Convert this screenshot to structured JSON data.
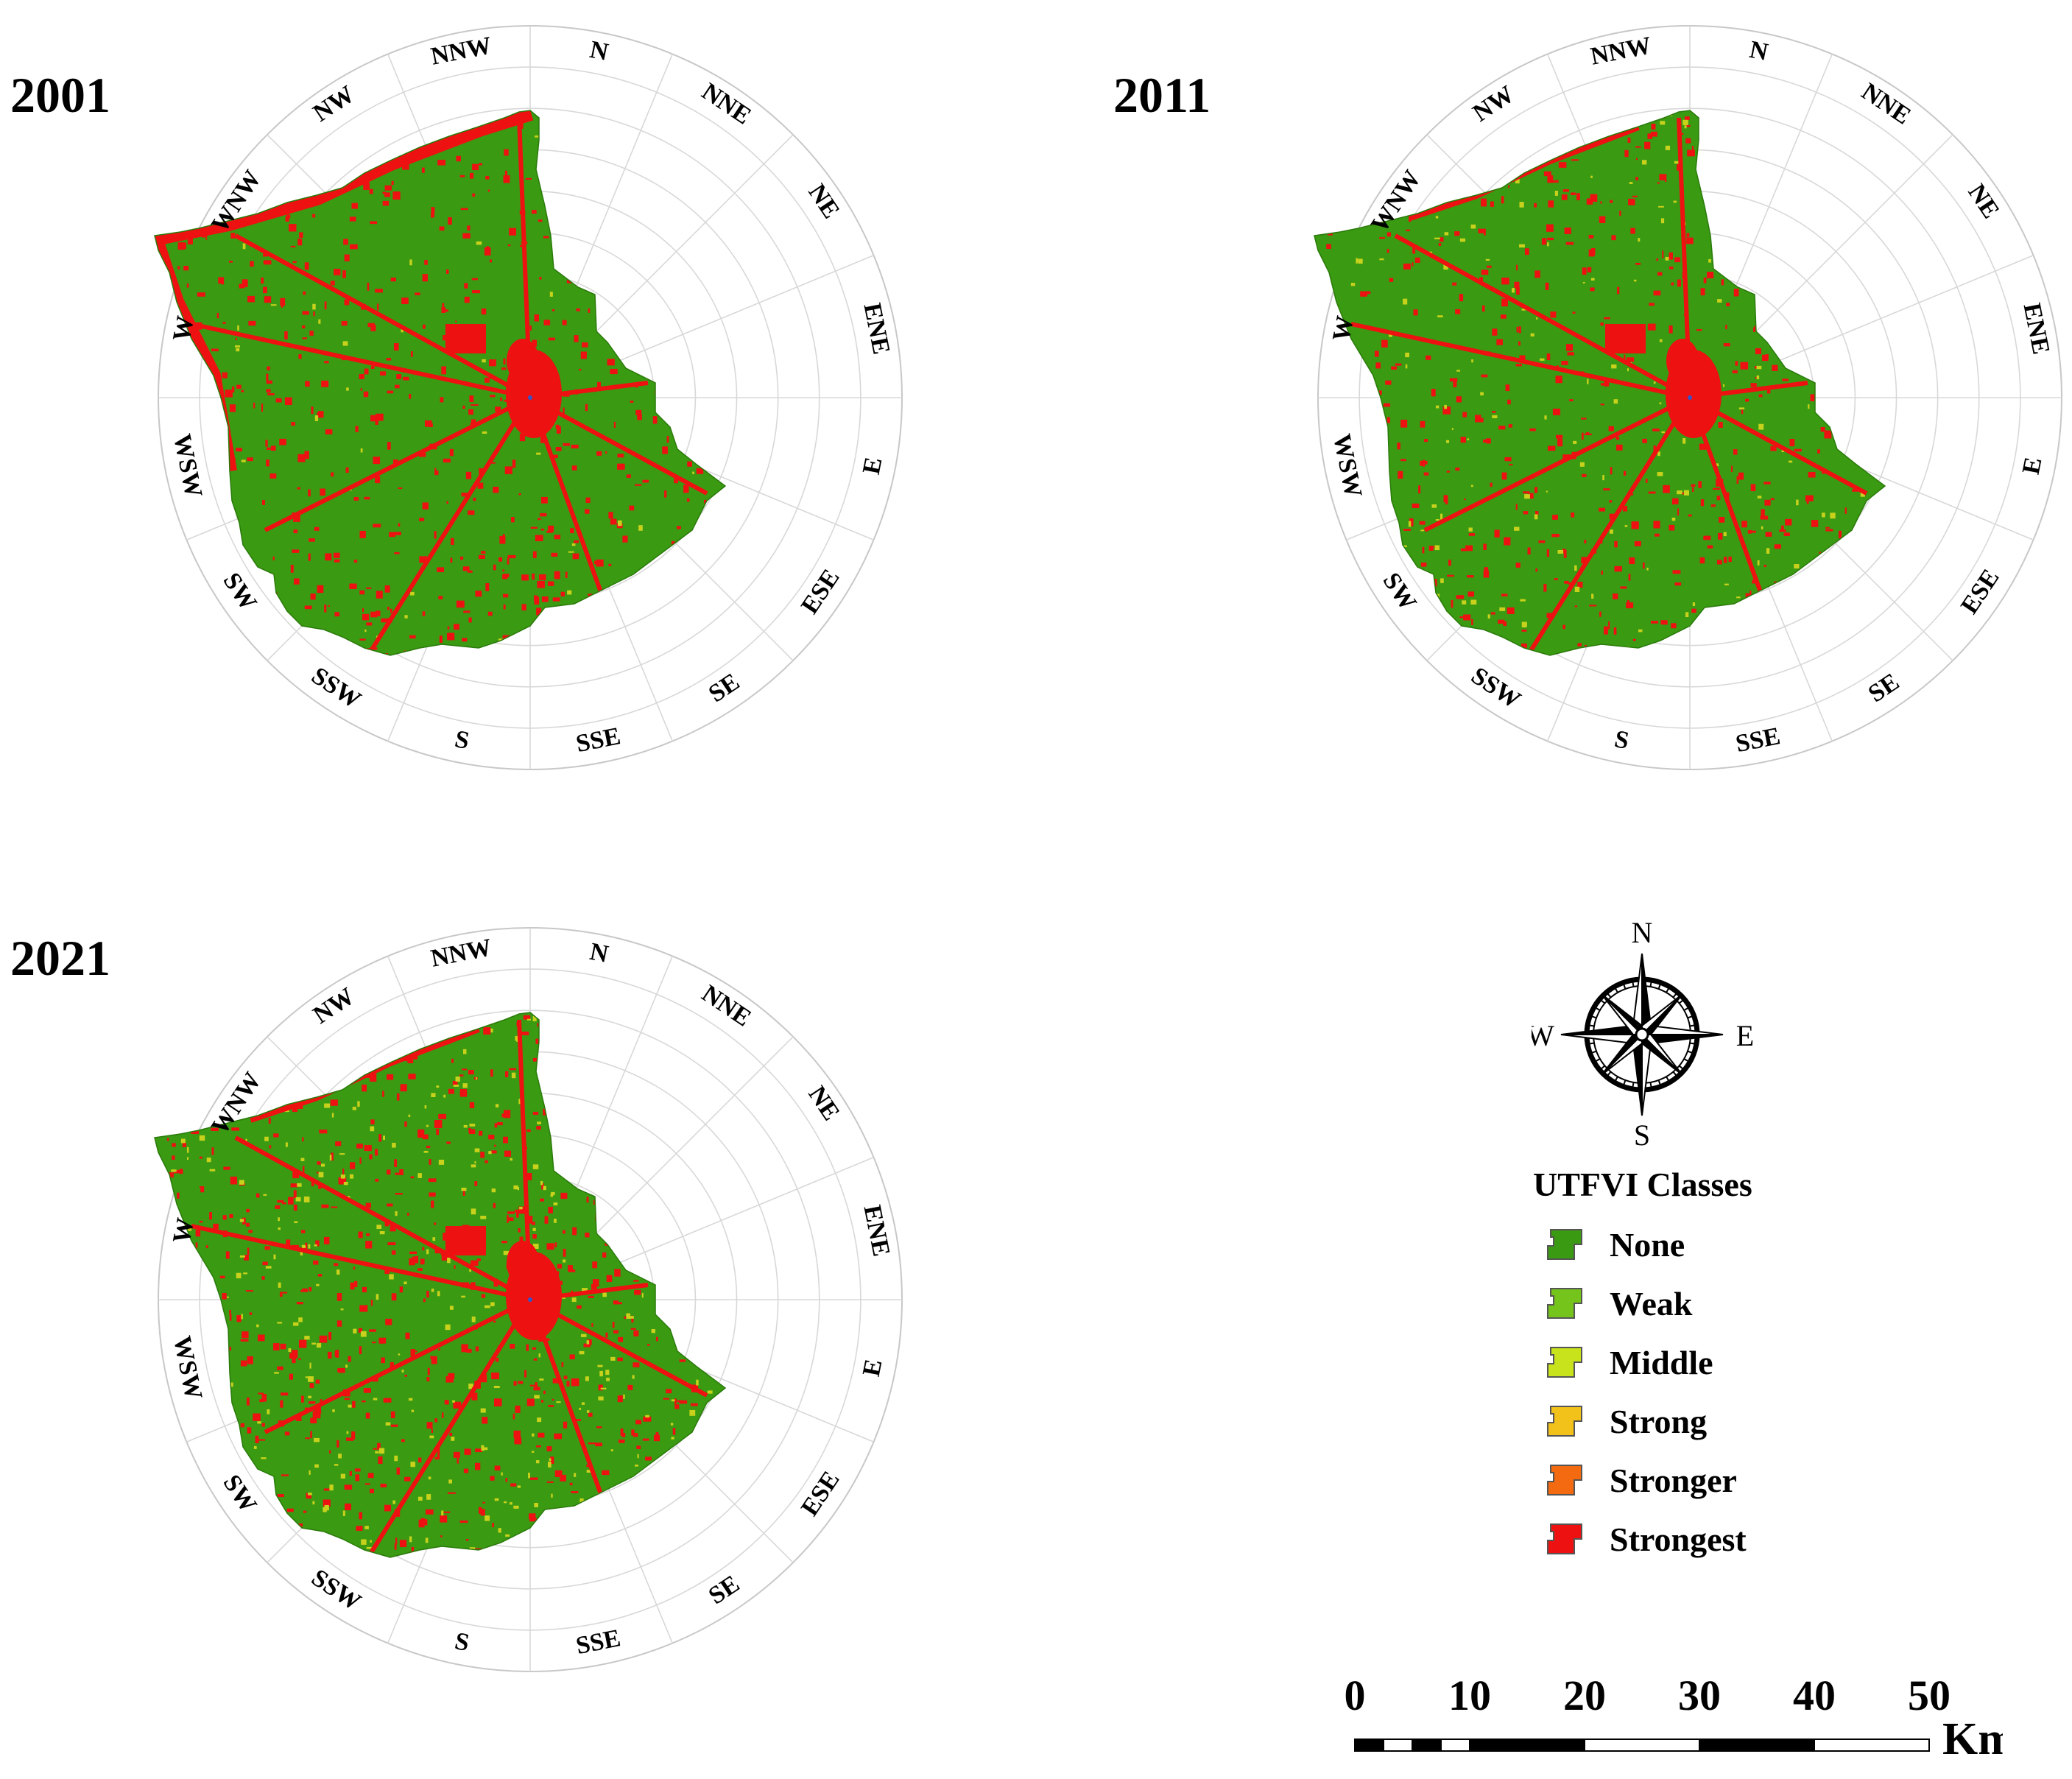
{
  "panels": [
    {
      "year": "2001",
      "seed": 11,
      "density": 0.34,
      "yellow": 0.03
    },
    {
      "year": "2011",
      "seed": 23,
      "density": 0.3,
      "yellow": 0.1
    },
    {
      "year": "2021",
      "seed": 37,
      "density": 0.42,
      "yellow": 0.2
    }
  ],
  "directions": [
    "N",
    "NNE",
    "NE",
    "ENE",
    "E",
    "ESE",
    "SE",
    "SSE",
    "S",
    "SSW",
    "SW",
    "WSW",
    "W",
    "WNW",
    "NW",
    "NNW"
  ],
  "legend": {
    "title": "UTFVI Classes",
    "items": [
      {
        "label": "None",
        "color": "#3a9a12"
      },
      {
        "label": "Weak",
        "color": "#74c41c"
      },
      {
        "label": "Middle",
        "color": "#c8e21c"
      },
      {
        "label": "Strong",
        "color": "#f2c21a"
      },
      {
        "label": "Stronger",
        "color": "#f36a10"
      },
      {
        "label": "Strongest",
        "color": "#ee1111"
      }
    ]
  },
  "compass": {
    "n": "N",
    "s": "S",
    "e": "E",
    "w": "W"
  },
  "scale": {
    "ticks": [
      "0",
      "10",
      "20",
      "30",
      "40",
      "50"
    ],
    "unit": "Km"
  },
  "colors": {
    "green": "#3a9a12",
    "red": "#ee1111",
    "yellow": "#c8d21c"
  }
}
